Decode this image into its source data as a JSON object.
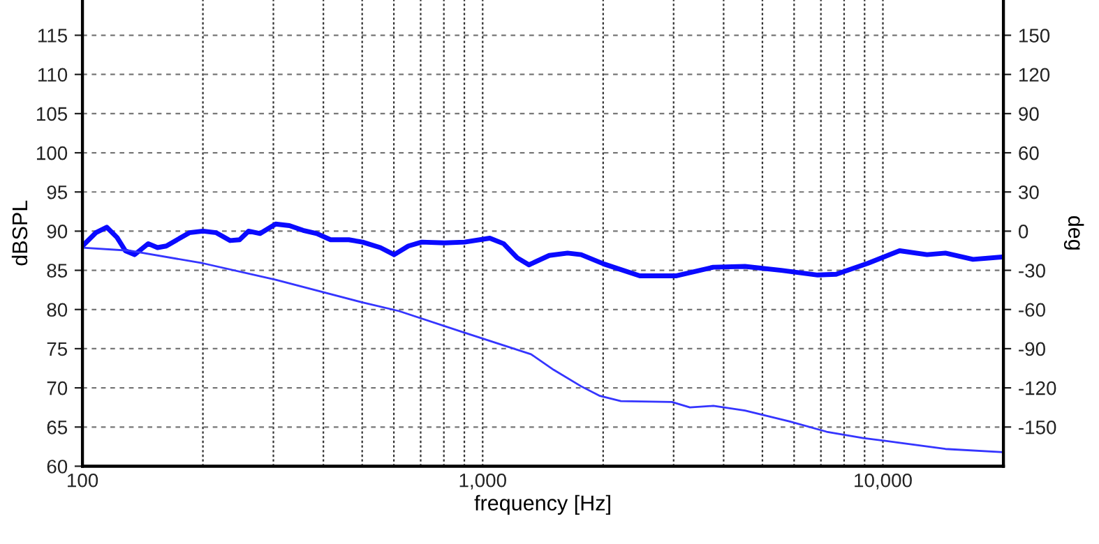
{
  "chart_data": {
    "type": "line",
    "xlabel": "frequency [Hz]",
    "ylabel": "dBSPL",
    "y2label": "deg",
    "log": "x",
    "grid": true,
    "marker": "none",
    "line_style": "solid",
    "xlim": [
      100,
      20000
    ],
    "ylim": [
      60,
      119.5
    ],
    "y2lim": [
      -180,
      177
    ],
    "xticks": [
      {
        "value": 100,
        "label": "100"
      },
      {
        "value": 200,
        "label": null
      },
      {
        "value": 300,
        "label": null
      },
      {
        "value": 400,
        "label": null
      },
      {
        "value": 500,
        "label": null
      },
      {
        "value": 600,
        "label": null
      },
      {
        "value": 700,
        "label": null
      },
      {
        "value": 800,
        "label": null
      },
      {
        "value": 900,
        "label": null
      },
      {
        "value": 1000,
        "label": "1,000"
      },
      {
        "value": 2000,
        "label": null
      },
      {
        "value": 3000,
        "label": null
      },
      {
        "value": 4000,
        "label": null
      },
      {
        "value": 5000,
        "label": null
      },
      {
        "value": 6000,
        "label": null
      },
      {
        "value": 7000,
        "label": null
      },
      {
        "value": 8000,
        "label": null
      },
      {
        "value": 9000,
        "label": null
      },
      {
        "value": 10000,
        "label": "10,000"
      }
    ],
    "yticks": [
      60,
      65,
      70,
      75,
      80,
      85,
      90,
      95,
      100,
      105,
      110,
      115
    ],
    "y2ticks": [
      -150,
      -120,
      -90,
      -60,
      -30,
      0,
      30,
      60,
      90,
      120,
      150
    ],
    "series": [
      {
        "color": "#0a0aff",
        "x": [
          100,
          108,
          115,
          122,
          128,
          135,
          146,
          154,
          162,
          185,
          200,
          216,
          234,
          247,
          260,
          278,
          304,
          329,
          356,
          385,
          417,
          463,
          501,
          555,
          601,
          652,
          704,
          803,
          901,
          1042,
          1128,
          1220,
          1305,
          1467,
          1630,
          1762,
          2011,
          2470,
          3051,
          3770,
          4521,
          5573,
          6870,
          7642,
          9173,
          11010,
          12890,
          14330,
          16790,
          19900
        ],
        "values": [
          88.1,
          89.8,
          90.5,
          89.2,
          87.5,
          87.0,
          88.4,
          87.9,
          88.1,
          89.8,
          90.0,
          89.8,
          88.8,
          88.9,
          90.0,
          89.7,
          90.9,
          90.7,
          90.1,
          89.7,
          88.9,
          88.9,
          88.6,
          87.9,
          87.0,
          88.1,
          88.6,
          88.5,
          88.6,
          89.1,
          88.4,
          86.6,
          85.7,
          86.9,
          87.2,
          87.0,
          85.8,
          84.3,
          84.3,
          85.4,
          85.5,
          85.0,
          84.4,
          84.5,
          85.9,
          87.5,
          87.0,
          87.2,
          86.4,
          86.7
        ]
      },
      {
        "color": "#3535ff",
        "x": [
          100,
          132,
          200,
          304,
          501,
          618,
          894,
          1320,
          1505,
          1762,
          1956,
          2215,
          2970,
          3295,
          3770,
          4521,
          5857,
          7232,
          8930,
          11010,
          14330,
          19900
        ],
        "values": [
          87.9,
          87.5,
          85.9,
          83.8,
          80.9,
          79.8,
          77.1,
          74.3,
          72.3,
          70.2,
          69.0,
          68.3,
          68.2,
          67.5,
          67.7,
          67.1,
          65.7,
          64.4,
          63.6,
          63.0,
          62.2,
          61.8
        ]
      }
    ]
  }
}
